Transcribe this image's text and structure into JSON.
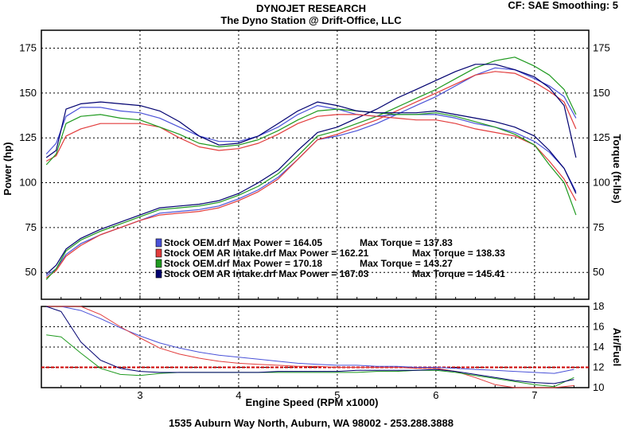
{
  "header": {
    "title": "DYNOJET RESEARCH",
    "subtitle": "The Dyno Station @ Drift-Office, LLC",
    "settings": "CF: SAE  Smoothing: 5"
  },
  "footer": {
    "address": "1535 Auburn Way North, Auburn, WA 98002 - 253.288.3888"
  },
  "colors": {
    "blue": "#4a52d8",
    "red": "#e23c3c",
    "green": "#1f9a1f",
    "navy": "#000070",
    "frame": "#000000",
    "grid": "#000000",
    "afr_ref": "#cc0000"
  },
  "chart_data": [
    {
      "type": "line",
      "xlabel": "Engine Speed (RPM x1000)",
      "ylabel": "Power (hp)",
      "y2label": "Torque (ft-lbs)",
      "xlim": [
        2.0,
        7.55
      ],
      "ylim": [
        35,
        185
      ],
      "y2lim": [
        35,
        185
      ],
      "xticks": [
        3,
        4,
        5,
        6,
        7
      ],
      "yticks": [
        50,
        75,
        100,
        125,
        150,
        175
      ],
      "y2ticks": [
        50,
        75,
        100,
        125,
        150,
        175
      ],
      "grid": true,
      "legend_position": "lower-center",
      "legend": [
        {
          "file": "Stock OEM.drf",
          "power_label": "Max Power = 164.05",
          "torque_label": "Max Torque = 137.83",
          "color": "#4a52d8"
        },
        {
          "file": "Stock OEM AR Intake.drf",
          "power_label": "Max Power = 162.21",
          "torque_label": "Max Torque = 138.33",
          "color": "#e23c3c"
        },
        {
          "file": "Stock OEM.drf",
          "power_label": "Max Power = 170.18",
          "torque_label": "Max Torque = 143.27",
          "color": "#1f9a1f"
        },
        {
          "file": "Stock OEM AR Intake.drf",
          "power_label": "Max Power = 167.03",
          "torque_label": "Max Torque = 145.41",
          "color": "#000070"
        }
      ],
      "x": [
        2.05,
        2.15,
        2.25,
        2.4,
        2.6,
        2.8,
        3.0,
        3.2,
        3.4,
        3.6,
        3.8,
        4.0,
        4.2,
        4.4,
        4.6,
        4.8,
        5.0,
        5.2,
        5.4,
        5.6,
        5.8,
        6.0,
        6.2,
        6.4,
        6.6,
        6.8,
        7.0,
        7.15,
        7.3,
        7.42
      ],
      "series": [
        {
          "name": "Stock OEM.drf",
          "kind": "power",
          "color": "#4a52d8",
          "values": [
            48,
            52,
            60,
            66,
            71,
            75,
            79,
            83,
            84,
            85,
            87,
            91,
            96,
            103,
            113,
            124,
            126,
            129,
            133,
            138,
            143,
            148,
            154,
            160,
            164,
            163,
            158,
            154,
            148,
            136
          ]
        },
        {
          "name": "Stock OEM AR Intake.drf",
          "kind": "power",
          "color": "#e23c3c",
          "values": [
            47,
            51,
            59,
            65,
            71,
            75,
            79,
            82,
            83,
            84,
            86,
            90,
            95,
            102,
            113,
            124,
            127,
            131,
            135,
            140,
            145,
            150,
            155,
            160,
            162,
            161,
            156,
            151,
            145,
            130
          ]
        },
        {
          "name": "Stock OEM.drf",
          "kind": "power",
          "color": "#1f9a1f",
          "values": [
            46,
            52,
            62,
            68,
            73,
            77,
            81,
            85,
            86,
            87,
            89,
            93,
            98,
            105,
            115,
            126,
            129,
            133,
            137,
            142,
            147,
            152,
            158,
            164,
            168,
            170,
            165,
            160,
            152,
            138
          ]
        },
        {
          "name": "Stock OEM AR Intake.drf",
          "kind": "power",
          "color": "#000070",
          "values": [
            49,
            54,
            63,
            69,
            74,
            78,
            82,
            86,
            87,
            88,
            90,
            94,
            100,
            107,
            118,
            128,
            131,
            136,
            141,
            147,
            152,
            157,
            162,
            166,
            166,
            163,
            159,
            153,
            143,
            114
          ]
        },
        {
          "name": "Stock OEM.drf",
          "kind": "torque",
          "color": "#4a52d8",
          "values": [
            116,
            122,
            137,
            142,
            142,
            140,
            139,
            136,
            131,
            126,
            123,
            123,
            126,
            131,
            138,
            143,
            141,
            138,
            137,
            138,
            138,
            138,
            136,
            133,
            131,
            128,
            123,
            117,
            108,
            95
          ]
        },
        {
          "name": "Stock OEM AR Intake.drf",
          "kind": "torque",
          "color": "#e23c3c",
          "values": [
            112,
            115,
            126,
            130,
            133,
            133,
            133,
            131,
            125,
            120,
            118,
            119,
            122,
            127,
            133,
            137,
            138,
            138,
            137,
            136,
            135,
            135,
            133,
            130,
            128,
            126,
            121,
            112,
            102,
            90
          ]
        },
        {
          "name": "Stock OEM.drf",
          "kind": "torque",
          "color": "#1f9a1f",
          "values": [
            110,
            116,
            133,
            137,
            138,
            136,
            135,
            131,
            127,
            122,
            120,
            121,
            124,
            129,
            135,
            140,
            141,
            140,
            139,
            138,
            138,
            139,
            137,
            134,
            131,
            127,
            121,
            110,
            100,
            82
          ]
        },
        {
          "name": "Stock OEM AR Intake.drf",
          "kind": "torque",
          "color": "#000070",
          "values": [
            114,
            118,
            141,
            144,
            145,
            144,
            143,
            140,
            134,
            126,
            121,
            122,
            126,
            133,
            140,
            145,
            143,
            140,
            139,
            139,
            139,
            140,
            138,
            136,
            134,
            131,
            126,
            118,
            108,
            94
          ]
        }
      ]
    },
    {
      "type": "line",
      "ylabel": "Air/Fuel",
      "xlim": [
        2.0,
        7.55
      ],
      "ylim": [
        10,
        18
      ],
      "yticks": [
        10,
        12,
        14,
        16,
        18
      ],
      "grid": true,
      "reference_line": 12,
      "x": [
        2.05,
        2.2,
        2.4,
        2.6,
        2.8,
        3.0,
        3.2,
        3.4,
        3.6,
        3.8,
        4.0,
        4.2,
        4.4,
        4.6,
        4.8,
        5.0,
        5.2,
        5.4,
        5.6,
        5.8,
        6.0,
        6.2,
        6.4,
        6.6,
        6.8,
        7.0,
        7.2,
        7.4
      ],
      "series": [
        {
          "name": "Stock OEM.drf",
          "color": "#4a52d8",
          "values": [
            18,
            18,
            17.6,
            16.8,
            15.9,
            15.1,
            14.4,
            13.9,
            13.5,
            13.2,
            13.0,
            12.8,
            12.6,
            12.4,
            12.3,
            12.2,
            12.2,
            12.1,
            12.1,
            12.0,
            12.0,
            11.9,
            11.8,
            11.7,
            11.6,
            11.5,
            11.4,
            11.8
          ]
        },
        {
          "name": "Stock OEM AR Intake.drf",
          "color": "#e23c3c",
          "values": [
            18,
            18,
            18,
            17.2,
            16.0,
            14.9,
            13.9,
            13.3,
            12.9,
            12.6,
            12.4,
            12.3,
            12.2,
            12.1,
            12.1,
            12.0,
            12.0,
            12.0,
            12.0,
            11.9,
            11.9,
            11.6,
            11.0,
            10.3,
            10.0,
            10.0,
            10.0,
            10.2
          ]
        },
        {
          "name": "Stock OEM.drf",
          "color": "#1f9a1f",
          "values": [
            15.2,
            15.0,
            13.4,
            11.9,
            11.3,
            11.2,
            11.4,
            11.5,
            11.5,
            11.5,
            11.5,
            11.5,
            11.5,
            11.5,
            11.5,
            11.5,
            11.5,
            11.6,
            11.6,
            11.7,
            11.7,
            11.5,
            11.2,
            10.9,
            10.6,
            10.3,
            10.1,
            11.0
          ]
        },
        {
          "name": "Stock OEM AR Intake.drf",
          "color": "#000070",
          "values": [
            18,
            17.5,
            14.5,
            12.7,
            11.9,
            11.6,
            11.5,
            11.5,
            11.5,
            11.5,
            11.5,
            11.5,
            11.6,
            11.6,
            11.6,
            11.6,
            11.7,
            11.7,
            11.7,
            11.7,
            11.8,
            11.6,
            11.3,
            11.0,
            10.7,
            10.5,
            10.4,
            10.8
          ]
        }
      ]
    }
  ]
}
